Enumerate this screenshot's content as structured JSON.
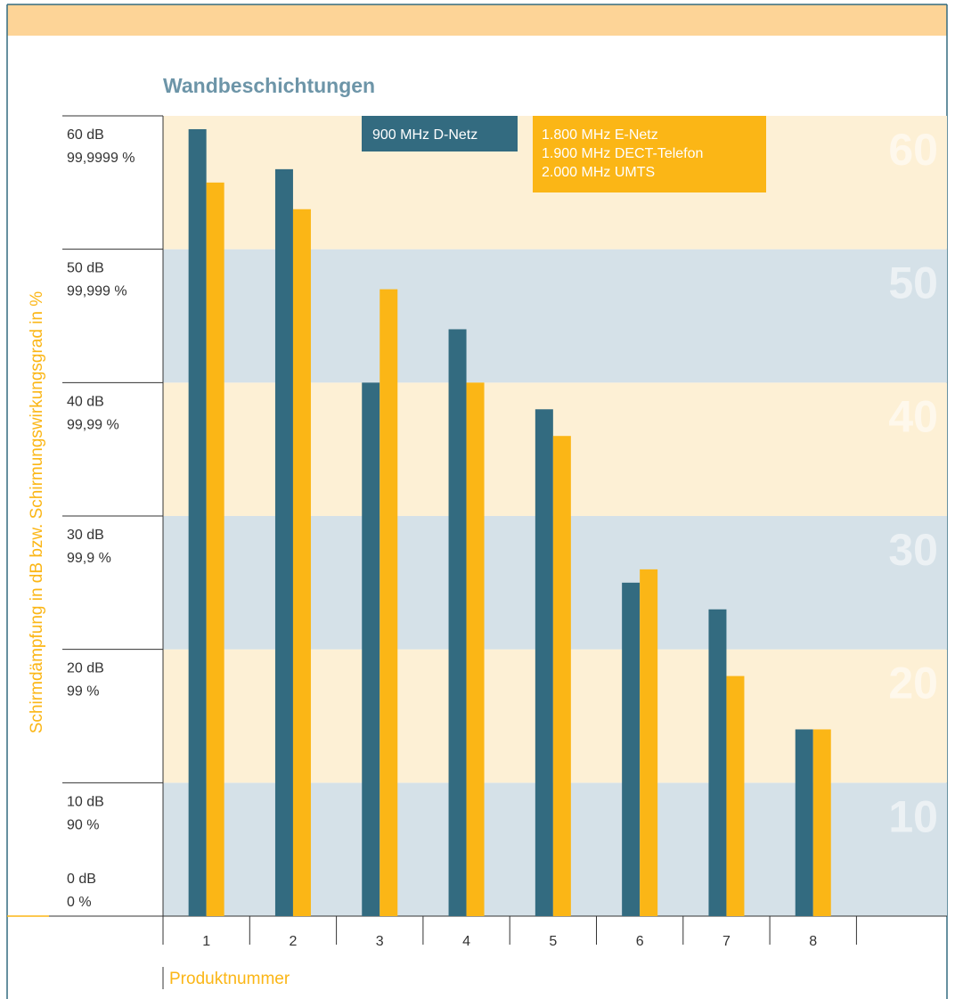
{
  "chart_data": {
    "type": "bar",
    "title": "Wandbeschichtungen",
    "y_label": "Schirmdämpfung in dB bzw. Schirmungswirkungsgrad in %",
    "x_label": "Produktnummer",
    "categories": [
      "1",
      "2",
      "3",
      "4",
      "5",
      "6",
      "7",
      "8"
    ],
    "series": [
      {
        "name": [
          "900 MHz D-Netz"
        ],
        "color": "#336b80",
        "values": [
          59,
          56,
          40,
          44,
          38,
          25,
          23,
          14
        ]
      },
      {
        "name": [
          "1.800 MHz E-Netz",
          "1.900 MHz DECT-Telefon",
          "2.000 MHz UMTS"
        ],
        "color": "#fbb616",
        "values": [
          55,
          53,
          47,
          40,
          36,
          26,
          18,
          14
        ]
      }
    ],
    "ylim": [
      0,
      60
    ],
    "yticks": [
      {
        "value": 0,
        "label": "0 dB",
        "percent": "0 %"
      },
      {
        "value": 10,
        "label": "10 dB",
        "percent": "90 %"
      },
      {
        "value": 20,
        "label": "20 dB",
        "percent": "99 %"
      },
      {
        "value": 30,
        "label": "30 dB",
        "percent": "99,9 %"
      },
      {
        "value": 40,
        "label": "40 dB",
        "percent": "99,99 %"
      },
      {
        "value": 50,
        "label": "50 dB",
        "percent": "99,999 %"
      },
      {
        "value": 60,
        "label": "60 dB",
        "percent": "99,9999 %"
      }
    ],
    "band_colors": [
      "#d5e1e8",
      "#fdf0d5"
    ]
  }
}
